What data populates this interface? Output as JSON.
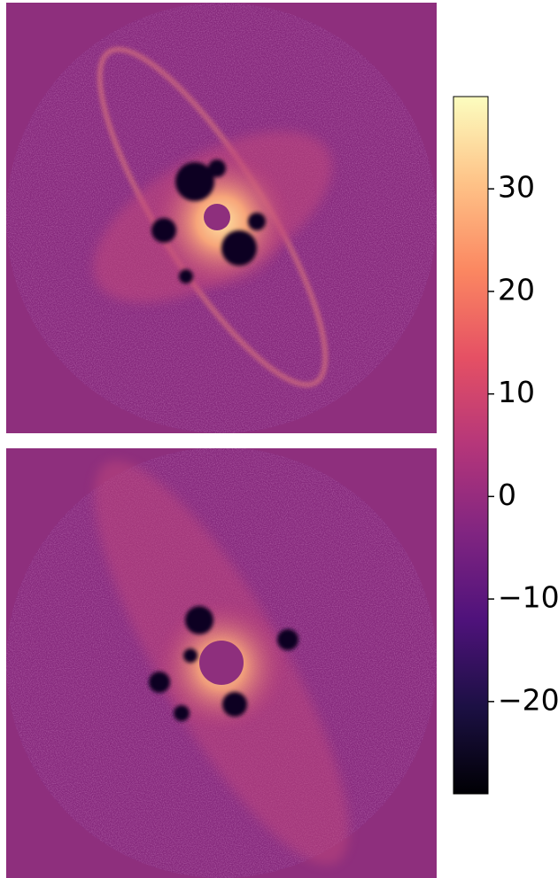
{
  "chart_data": {
    "type": "image",
    "colormap": "magma",
    "zlim": [
      -29,
      39
    ],
    "zticks": [
      {
        "value": -20,
        "label": "−20"
      },
      {
        "value": -10,
        "label": "−10"
      },
      0,
      10,
      20,
      30
    ]
  }
}
